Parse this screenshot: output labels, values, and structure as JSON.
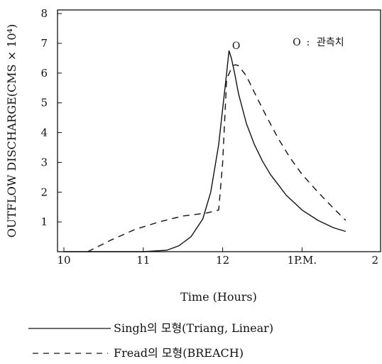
{
  "chart_data": {
    "type": "line",
    "xlabel": "Time (Hours)",
    "ylabel": "OUTFLOW DISCHARGE(CMS × 10⁴)",
    "xlim": [
      10,
      13
    ],
    "ylim": [
      0,
      8
    ],
    "x_ticks": [
      {
        "value": 10,
        "label": "10"
      },
      {
        "value": 11,
        "label": "11"
      },
      {
        "value": 12,
        "label": "12"
      },
      {
        "value": 13,
        "label": "1P.M."
      }
    ],
    "y_ticks": [
      {
        "value": 1,
        "label": "1"
      },
      {
        "value": 2,
        "label": "2"
      },
      {
        "value": 3,
        "label": "3"
      },
      {
        "value": 4,
        "label": "4"
      },
      {
        "value": 5,
        "label": "5"
      },
      {
        "value": 6,
        "label": "6"
      },
      {
        "value": 7,
        "label": "7"
      },
      {
        "value": 8,
        "label": "8"
      }
    ],
    "series": [
      {
        "name": "Singh의 모형(Triang, Linear)",
        "style": "solid",
        "color": "#111111",
        "x": [
          10.0,
          11.0,
          11.3,
          11.45,
          11.6,
          11.75,
          11.85,
          11.95,
          12.05,
          12.08,
          12.11,
          12.15,
          12.2,
          12.3,
          12.4,
          12.5,
          12.6,
          12.7,
          12.8,
          12.9,
          13.0,
          13.2,
          13.4,
          13.55
        ],
        "y": [
          0.0,
          0.0,
          0.05,
          0.2,
          0.5,
          1.1,
          2.0,
          3.6,
          6.0,
          6.75,
          6.5,
          6.0,
          5.3,
          4.3,
          3.6,
          3.05,
          2.6,
          2.25,
          1.9,
          1.65,
          1.4,
          1.05,
          0.8,
          0.68
        ]
      },
      {
        "name": "Fread의 모형(BREACH)",
        "style": "dashed",
        "color": "#111111",
        "x": [
          10.3,
          10.6,
          10.9,
          11.2,
          11.5,
          11.8,
          11.95,
          12.0,
          12.05,
          12.1,
          12.13,
          12.16,
          12.2,
          12.3,
          12.4,
          12.55,
          12.7,
          12.85,
          13.0,
          13.2,
          13.4,
          13.55
        ],
        "y": [
          0.0,
          0.4,
          0.75,
          1.0,
          1.2,
          1.3,
          1.4,
          3.0,
          5.8,
          6.1,
          6.25,
          6.28,
          6.25,
          5.9,
          5.35,
          4.55,
          3.8,
          3.15,
          2.6,
          2.0,
          1.45,
          1.05
        ]
      }
    ],
    "observed": {
      "x": 12.17,
      "y": 6.9,
      "symbol": "O"
    },
    "marker_legend": {
      "symbol": "O",
      "separator": ":",
      "label": "관측치"
    },
    "legend": {
      "placement": "below",
      "items": [
        {
          "style": "solid",
          "label": "Singh의 모형(Triang, Linear)"
        },
        {
          "style": "dashed",
          "label": "Fread의 모형(BREACH)"
        }
      ]
    },
    "edge_label": "2",
    "grid": false
  }
}
